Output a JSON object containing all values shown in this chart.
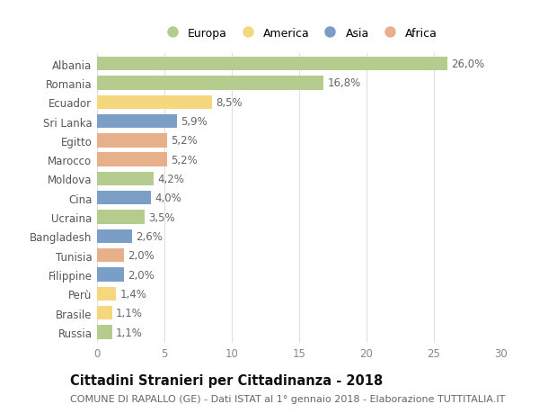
{
  "countries": [
    "Albania",
    "Romania",
    "Ecuador",
    "Sri Lanka",
    "Egitto",
    "Marocco",
    "Moldova",
    "Cina",
    "Ucraina",
    "Bangladesh",
    "Tunisia",
    "Filippine",
    "Perù",
    "Brasile",
    "Russia"
  ],
  "values": [
    26.0,
    16.8,
    8.5,
    5.9,
    5.2,
    5.2,
    4.2,
    4.0,
    3.5,
    2.6,
    2.0,
    2.0,
    1.4,
    1.1,
    1.1
  ],
  "labels": [
    "26,0%",
    "16,8%",
    "8,5%",
    "5,9%",
    "5,2%",
    "5,2%",
    "4,2%",
    "4,0%",
    "3,5%",
    "2,6%",
    "2,0%",
    "2,0%",
    "1,4%",
    "1,1%",
    "1,1%"
  ],
  "continents": [
    "Europa",
    "Europa",
    "America",
    "Asia",
    "Africa",
    "Africa",
    "Europa",
    "Asia",
    "Europa",
    "Asia",
    "Africa",
    "Asia",
    "America",
    "America",
    "Europa"
  ],
  "continent_colors": {
    "Europa": "#b5cc8e",
    "America": "#f5d87e",
    "Asia": "#7a9ec6",
    "Africa": "#e8b08a"
  },
  "legend_order": [
    "Europa",
    "America",
    "Asia",
    "Africa"
  ],
  "title": "Cittadini Stranieri per Cittadinanza - 2018",
  "subtitle": "COMUNE DI RAPALLO (GE) - Dati ISTAT al 1° gennaio 2018 - Elaborazione TUTTITALIA.IT",
  "xlim": [
    0,
    30
  ],
  "xticks": [
    0,
    5,
    10,
    15,
    20,
    25,
    30
  ],
  "background_color": "#ffffff",
  "grid_color": "#e0e0e0",
  "label_fontsize": 8.5,
  "value_fontsize": 8.5,
  "title_fontsize": 10.5,
  "subtitle_fontsize": 8,
  "bar_height": 0.72
}
